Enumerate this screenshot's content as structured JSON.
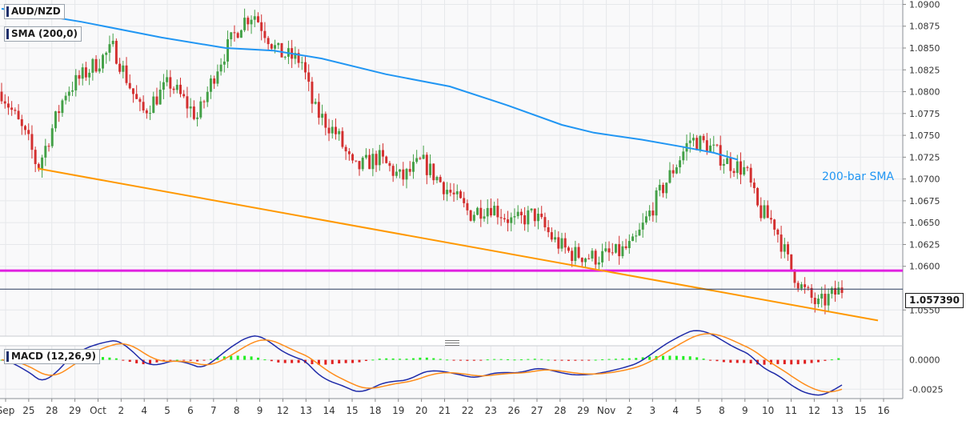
{
  "chart_data": {
    "type": "candlestick",
    "symbol": "AUD/NZD",
    "indicators": {
      "sma": {
        "label": "SMA (200,0)",
        "annotation": "200-bar SMA",
        "color": "#2196f3"
      },
      "macd": {
        "label": "MACD (12,26,9)"
      }
    },
    "last_price": "1.057390",
    "price_axis": {
      "ylim": [
        1.052,
        1.0905
      ],
      "ticks": [
        "1.0900",
        "1.0875",
        "1.0850",
        "1.0825",
        "1.0800",
        "1.0775",
        "1.0750",
        "1.0725",
        "1.0700",
        "1.0675",
        "1.0650",
        "1.0625",
        "1.0600",
        "1.0550"
      ]
    },
    "macd_axis": {
      "ylim": [
        -0.0033,
        0.0012
      ],
      "ticks": [
        "0.0000",
        "-0.0025"
      ]
    },
    "x_axis": {
      "tick_labels": [
        "Sep",
        "25",
        "28",
        "29",
        "Oct",
        "2",
        "4",
        "5",
        "6",
        "7",
        "8",
        "9",
        "12",
        "13",
        "14",
        "15",
        "18",
        "19",
        "20",
        "21",
        "22",
        "23",
        "26",
        "27",
        "28",
        "29",
        "Nov",
        "2",
        "3",
        "4",
        "5",
        "8",
        "9",
        "10",
        "11",
        "12",
        "13",
        "15",
        "16"
      ]
    },
    "horizontal_level": {
      "value": 1.0595,
      "color": "#e020e0"
    },
    "support_line": {
      "from": [
        0.0,
        1.0712
      ],
      "to": [
        1.0,
        1.0538
      ],
      "color": "#ff9800"
    },
    "price_path": [
      [
        0.0,
        1.08
      ],
      [
        0.035,
        1.074
      ],
      [
        0.045,
        1.0712
      ],
      [
        0.08,
        1.08
      ],
      [
        0.115,
        1.083
      ],
      [
        0.14,
        1.085
      ],
      [
        0.175,
        1.0775
      ],
      [
        0.21,
        1.081
      ],
      [
        0.245,
        1.077
      ],
      [
        0.27,
        1.083
      ],
      [
        0.3,
        1.088
      ],
      [
        0.315,
        1.089
      ],
      [
        0.345,
        1.0845
      ],
      [
        0.375,
        1.0835
      ],
      [
        0.39,
        1.078
      ],
      [
        0.42,
        1.075
      ],
      [
        0.44,
        1.071
      ],
      [
        0.47,
        1.0725
      ],
      [
        0.5,
        1.07
      ],
      [
        0.525,
        1.072
      ],
      [
        0.555,
        1.069
      ],
      [
        0.585,
        1.066
      ],
      [
        0.61,
        1.067
      ],
      [
        0.64,
        1.065
      ],
      [
        0.665,
        1.066
      ],
      [
        0.69,
        1.063
      ],
      [
        0.71,
        1.0615
      ],
      [
        0.74,
        1.061
      ],
      [
        0.77,
        1.0615
      ],
      [
        0.79,
        1.0625
      ],
      [
        0.82,
        1.068
      ],
      [
        0.845,
        1.072
      ],
      [
        0.86,
        1.0745
      ],
      [
        0.88,
        1.074
      ],
      [
        0.905,
        1.072
      ],
      [
        0.93,
        1.071
      ],
      [
        0.945,
        1.0665
      ],
      [
        0.965,
        1.065
      ],
      [
        0.985,
        1.06
      ],
      [
        1.0,
        1.0575
      ],
      [
        1.02,
        1.0555
      ],
      [
        1.035,
        1.0565
      ],
      [
        1.05,
        1.0574
      ]
    ],
    "sma_path": [
      [
        0.0,
        1.0895
      ],
      [
        0.1,
        1.088
      ],
      [
        0.2,
        1.0862
      ],
      [
        0.28,
        1.085
      ],
      [
        0.34,
        1.0847
      ],
      [
        0.4,
        1.0838
      ],
      [
        0.48,
        1.082
      ],
      [
        0.56,
        1.0806
      ],
      [
        0.63,
        1.0785
      ],
      [
        0.7,
        1.0762
      ],
      [
        0.74,
        1.0753
      ],
      [
        0.8,
        1.0745
      ],
      [
        0.85,
        1.0737
      ],
      [
        0.89,
        1.073
      ],
      [
        0.92,
        1.0722
      ]
    ]
  }
}
